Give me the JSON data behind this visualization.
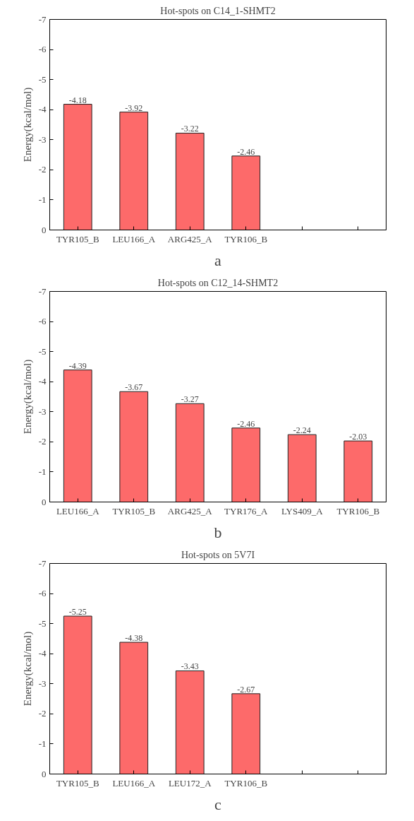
{
  "chart_data": [
    {
      "type": "bar",
      "title": "Hot-spots on C14_1-SHMT2",
      "ylabel": "Energy(kcal/mol)",
      "categories": [
        "TYR105_B",
        "LEU166_A",
        "ARG425_A",
        "TYR106_B",
        null,
        null
      ],
      "values": [
        -4.18,
        -3.92,
        -3.22,
        -2.46,
        null,
        null
      ],
      "color": "#fd6a6a",
      "ylim": [
        0,
        -7
      ],
      "yticks": [
        0,
        -1,
        -2,
        -3,
        -4,
        -5,
        -6,
        -7
      ],
      "data_labels": true,
      "grid": false,
      "annotations": [
        "a"
      ]
    },
    {
      "type": "bar",
      "title": "Hot-spots on C12_14-SHMT2",
      "ylabel": "Energy(kcal/mol)",
      "categories": [
        "LEU166_A",
        "TYR105_B",
        "ARG425_A",
        "TYR176_A",
        "LYS409_A",
        "TYR106_B"
      ],
      "values": [
        -4.39,
        -3.67,
        -3.27,
        -2.46,
        -2.24,
        -2.03
      ],
      "color": "#fd6a6a",
      "ylim": [
        0,
        -7
      ],
      "yticks": [
        0,
        -1,
        -2,
        -3,
        -4,
        -5,
        -6,
        -7
      ],
      "data_labels": true,
      "grid": false,
      "annotations": [
        "b"
      ]
    },
    {
      "type": "bar",
      "title": "Hot-spots on 5V7I",
      "ylabel": "Energy(kcal/mol)",
      "categories": [
        "TYR105_B",
        "LEU166_A",
        "LEU172_A",
        "TYR106_B",
        null,
        null
      ],
      "values": [
        -5.25,
        -4.38,
        -3.43,
        -2.67,
        null,
        null
      ],
      "color": "#fd6a6a",
      "ylim": [
        0,
        -7
      ],
      "yticks": [
        0,
        -1,
        -2,
        -3,
        -4,
        -5,
        -6,
        -7
      ],
      "data_labels": true,
      "grid": false,
      "annotations": [
        "c"
      ]
    }
  ]
}
